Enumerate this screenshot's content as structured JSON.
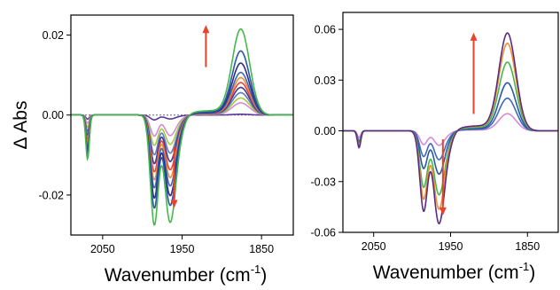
{
  "chart_data": [
    {
      "type": "line",
      "ylabel": "Δ Abs",
      "xlabel": "Wavenumber (cm",
      "xlabel_sup": "-1",
      "xlim": [
        2090,
        1810
      ],
      "ylim": [
        -0.03,
        0.025
      ],
      "xticks": [
        {
          "v": 2050,
          "label": "2050"
        },
        {
          "v": 1950,
          "label": "1950"
        },
        {
          "v": 1850,
          "label": "1850"
        }
      ],
      "yticks": [
        {
          "v": 0.02,
          "label": "0.02"
        },
        {
          "v": 0.0,
          "label": "0.00"
        },
        {
          "v": -0.02,
          "label": "-0.02"
        }
      ],
      "zero_line": true,
      "arrows": [
        {
          "x": 1920,
          "y_from": 0.012,
          "y_to": 0.0225,
          "color": "#e8432c"
        },
        {
          "x": 1960,
          "y_from": -0.008,
          "y_to": -0.0232,
          "color": "#e8432c"
        }
      ],
      "series": [
        {
          "color": "#44b94a",
          "peak": 0.0212,
          "dipA": -0.0272,
          "dipB": -0.022,
          "spike": -0.011
        },
        {
          "color": "#2b56a8",
          "peak": 0.0158,
          "dipA": -0.023,
          "dipB": -0.0185,
          "spike": -0.01
        },
        {
          "color": "#2f2b85",
          "peak": 0.0128,
          "dipA": -0.0205,
          "dipB": -0.0165,
          "spike": -0.009
        },
        {
          "color": "#3d69b6",
          "peak": 0.0105,
          "dipA": -0.018,
          "dipB": -0.0145,
          "spike": -0.008
        },
        {
          "color": "#ef8f33",
          "peak": 0.0092,
          "dipA": -0.016,
          "dipB": -0.0128,
          "spike": -0.007
        },
        {
          "color": "#e9433d",
          "peak": 0.008,
          "dipA": -0.014,
          "dipB": -0.0112,
          "spike": -0.006
        },
        {
          "color": "#3a3a93",
          "peak": 0.0068,
          "dipA": -0.012,
          "dipB": -0.0095,
          "spike": -0.005
        },
        {
          "color": "#5b7bc2",
          "peak": 0.0055,
          "dipA": -0.0098,
          "dipB": -0.0078,
          "spike": -0.004
        },
        {
          "color": "#a4c93b",
          "peak": 0.0042,
          "dipA": -0.0075,
          "dipB": -0.006,
          "spike": -0.003
        },
        {
          "color": "#d68ad6",
          "peak": 0.003,
          "dipA": -0.0052,
          "dipB": -0.0042,
          "spike": -0.002
        },
        {
          "color": "#5a3a9c",
          "peak": 0.0002,
          "dipA": -0.0012,
          "dipB": -0.0008,
          "spike": -0.001
        }
      ]
    },
    {
      "type": "line",
      "ylabel": "",
      "xlabel": "Wavenumber (cm",
      "xlabel_sup": "-1",
      "xlim": [
        2090,
        1810
      ],
      "ylim": [
        -0.06,
        0.07
      ],
      "xticks": [
        {
          "v": 2050,
          "label": "2050"
        },
        {
          "v": 1950,
          "label": "1950"
        },
        {
          "v": 1850,
          "label": "1850"
        }
      ],
      "yticks": [
        {
          "v": 0.06,
          "label": "0.06"
        },
        {
          "v": 0.03,
          "label": "0.03"
        },
        {
          "v": 0.0,
          "label": "0.00"
        },
        {
          "v": -0.03,
          "label": "-0.03"
        },
        {
          "v": -0.06,
          "label": "-0.06"
        }
      ],
      "zero_line": false,
      "arrows": [
        {
          "x": 1920,
          "y_from": 0.01,
          "y_to": 0.058,
          "color": "#e8432c"
        },
        {
          "x": 1960,
          "y_from": -0.005,
          "y_to": -0.05,
          "color": "#e8432c"
        }
      ],
      "series": [
        {
          "color": "#5a2b86",
          "peak": 0.057,
          "dipA": -0.047,
          "dipB": -0.045,
          "spike": -0.01
        },
        {
          "color": "#ef8f33",
          "peak": 0.051,
          "dipA": -0.04,
          "dipB": -0.038,
          "spike": -0.009
        },
        {
          "color": "#44b94a",
          "peak": 0.04,
          "dipA": -0.033,
          "dipB": -0.031,
          "spike": -0.008
        },
        {
          "color": "#2b56a8",
          "peak": 0.028,
          "dipA": -0.022,
          "dipB": -0.021,
          "spike": -0.007
        },
        {
          "color": "#3d69b6",
          "peak": 0.019,
          "dipA": -0.015,
          "dipB": -0.014,
          "spike": -0.006
        },
        {
          "color": "#d68ad6",
          "peak": 0.01,
          "dipA": -0.008,
          "dipB": -0.007,
          "spike": -0.004
        }
      ]
    }
  ]
}
